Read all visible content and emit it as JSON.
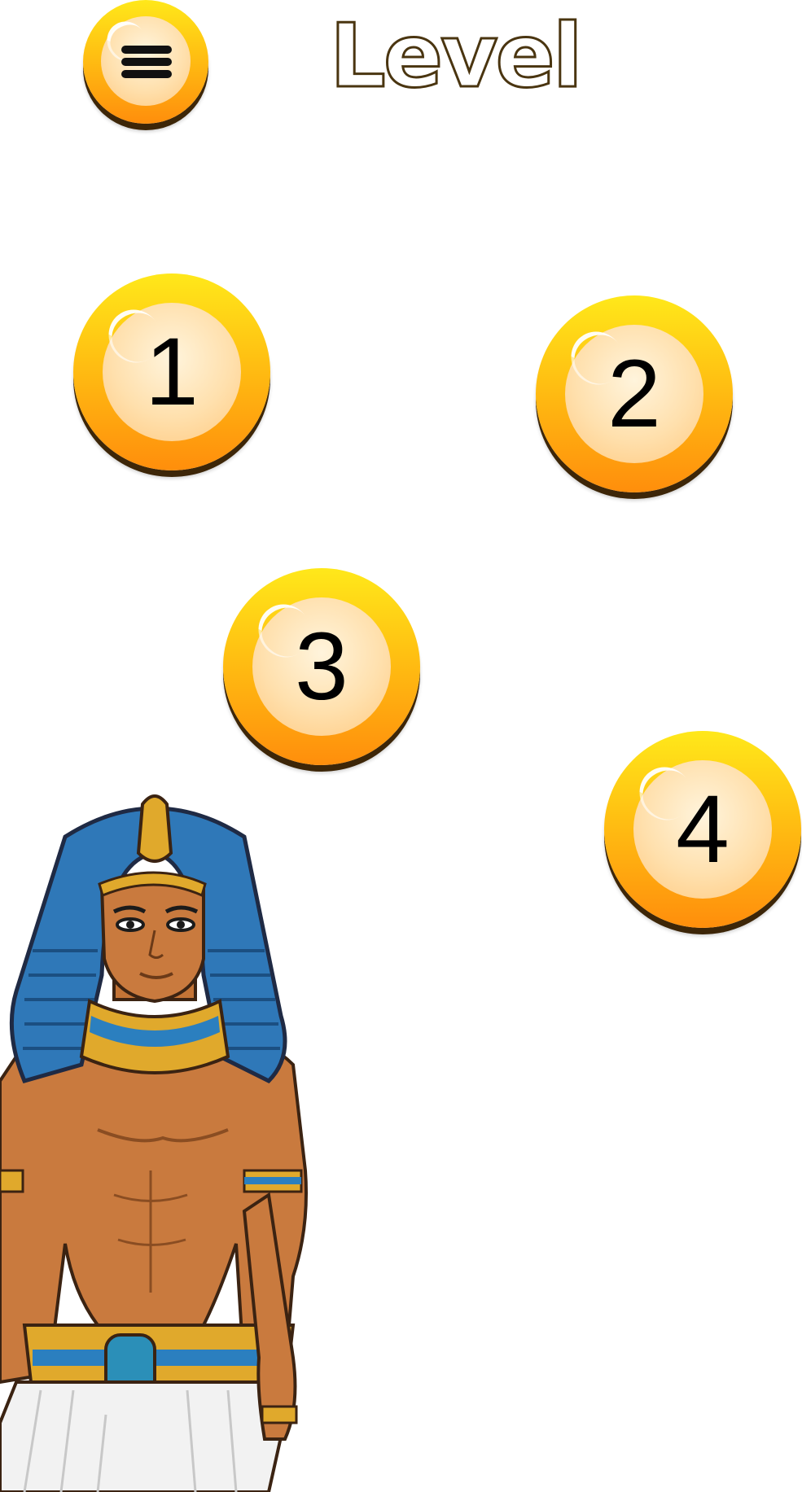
{
  "header": {
    "title": "Level",
    "menu_icon": "hamburger-menu-icon"
  },
  "levels": [
    {
      "label": "1"
    },
    {
      "label": "2"
    },
    {
      "label": "3"
    },
    {
      "label": "4"
    }
  ],
  "colors": {
    "ball_top": "#ffe81a",
    "ball_bottom": "#ff8e0c",
    "ball_inner": "#ffe0ad",
    "title_outline": "#4a3510",
    "background": "#ffffff"
  },
  "illustration": {
    "subject": "pharaoh-character"
  }
}
